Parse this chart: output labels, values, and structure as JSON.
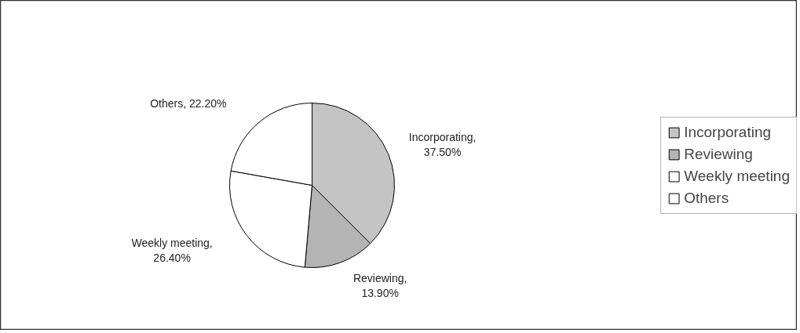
{
  "chart_data": {
    "type": "pie",
    "categories": [
      "Incorporating",
      "Reviewing",
      "Weekly meeting",
      "Others"
    ],
    "values": [
      37.5,
      13.9,
      26.4,
      22.2
    ],
    "value_labels": [
      "Incorporating, 37.50%",
      "Reviewing, 13.90%",
      "Weekly meeting, 26.40%",
      "Others, 22.20%"
    ],
    "colors": [
      "#c4c4c4",
      "#b4b4b4",
      "#ffffff",
      "#ffffff"
    ],
    "legend": "right"
  }
}
